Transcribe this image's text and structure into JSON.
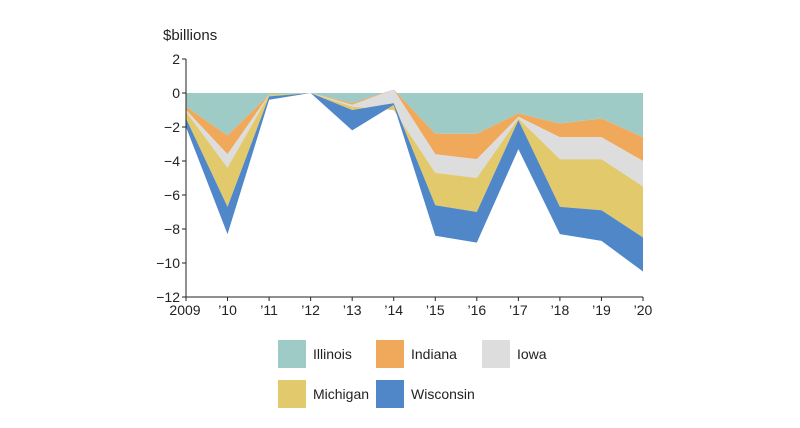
{
  "chart_data": {
    "type": "area",
    "stacked": true,
    "ylabel": "$billions",
    "x": [
      "2009",
      "’10",
      "’11",
      "’12",
      "’13",
      "’14",
      "’15",
      "’16",
      "’17",
      "’18",
      "’19",
      "’20"
    ],
    "ylim": [
      -12,
      2
    ],
    "yticks": [
      2,
      0,
      -2,
      -4,
      -6,
      -8,
      -10,
      -12
    ],
    "grid": false,
    "legend_position": "bottom",
    "series": [
      {
        "name": "Illinois",
        "color": "#9ecbc6",
        "values": [
          -0.8,
          -2.5,
          -0.1,
          0.0,
          -0.6,
          0.2,
          -2.4,
          -2.4,
          -1.2,
          -1.8,
          -1.5,
          -2.6
        ]
      },
      {
        "name": "Indiana",
        "color": "#f0a95b",
        "values": [
          -0.2,
          -1.1,
          0.0,
          0.0,
          -0.1,
          0.0,
          -1.2,
          -1.5,
          -0.2,
          -0.8,
          -1.1,
          -1.4
        ]
      },
      {
        "name": "Iowa",
        "color": "#dddddd",
        "values": [
          -0.1,
          -0.8,
          0.0,
          0.0,
          -0.1,
          -1.2,
          -1.1,
          -1.1,
          -0.1,
          -1.3,
          -1.3,
          -1.5
        ]
      },
      {
        "name": "Michigan",
        "color": "#e2c96b",
        "values": [
          -0.4,
          -2.3,
          -0.1,
          0.0,
          -0.2,
          0.4,
          -1.9,
          -2.0,
          -0.1,
          -2.8,
          -3.0,
          -3.0
        ]
      },
      {
        "name": "Wisconsin",
        "color": "#4f87c9",
        "values": [
          -0.5,
          -1.6,
          -0.2,
          0.0,
          -1.2,
          -0.1,
          -1.8,
          -1.8,
          -1.7,
          -1.6,
          -1.8,
          -2.0
        ]
      }
    ]
  }
}
